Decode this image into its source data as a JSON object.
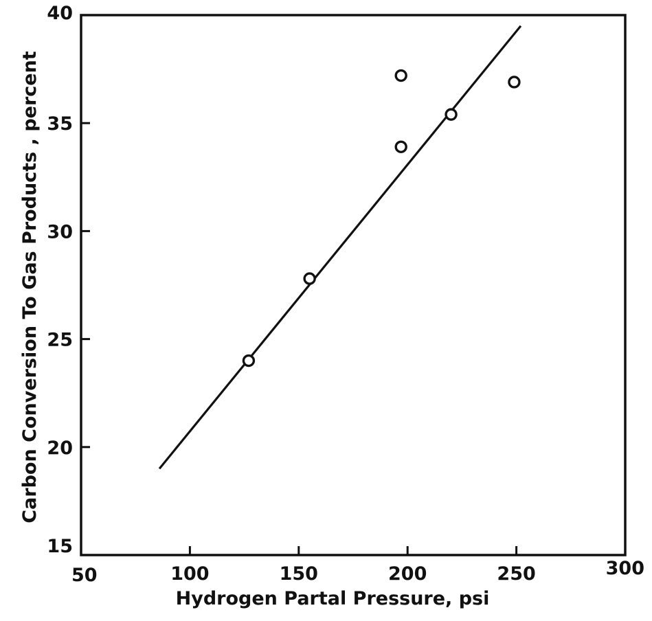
{
  "chart_data": {
    "type": "scatter",
    "title": "",
    "xlabel": "Hydrogen Partal Pressure, psi",
    "ylabel": "Carbon Conversion To Gas Products , percent",
    "xlim": [
      50,
      300
    ],
    "ylim": [
      15,
      40
    ],
    "x_ticks": [
      50,
      100,
      150,
      200,
      250,
      300
    ],
    "y_ticks": [
      15,
      20,
      25,
      30,
      35,
      40
    ],
    "x_tick_labels": [
      "50",
      "100",
      "150",
      "200",
      "250",
      "300"
    ],
    "y_tick_labels": [
      "15",
      "20",
      "25",
      "30",
      "35",
      "40"
    ],
    "grid": false,
    "legend": "none",
    "points": {
      "x": [
        127,
        155,
        197,
        197,
        220,
        249
      ],
      "y": [
        24.0,
        27.8,
        33.9,
        37.2,
        35.4,
        36.9
      ],
      "marker": "open-circle"
    },
    "fit_line": {
      "x": [
        86,
        252
      ],
      "y": [
        19.0,
        39.5
      ]
    }
  }
}
